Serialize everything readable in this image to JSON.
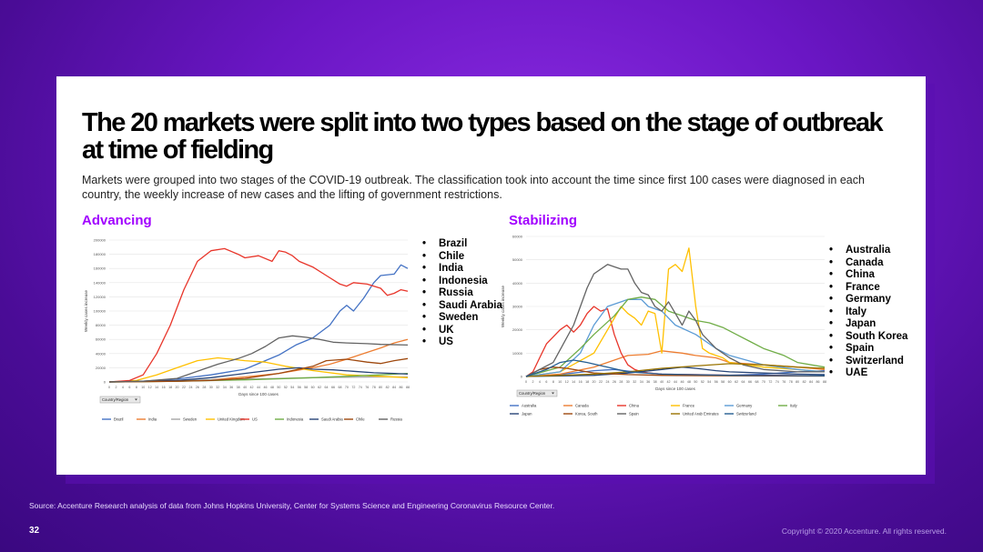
{
  "title": "The 20 markets were split into two types based on the stage of outbreak at time of fielding",
  "subtitle": "Markets were grouped into two stages of the COVID-19 outbreak. The classification took into account the time since first 100 cases were diagnosed in each country, the weekly increase of new cases and the lifting of government restrictions.",
  "advancing": {
    "label": "Advancing",
    "countries": [
      "Brazil",
      "Chile",
      "India",
      "Indonesia",
      "Russia",
      "Saudi Arabia",
      "Sweden",
      "UK",
      "US"
    ]
  },
  "stabilizing": {
    "label": "Stabilizing",
    "countries": [
      "Australia",
      "Canada",
      "China",
      "France",
      "Germany",
      "Italy",
      "Japan",
      "South Korea",
      "Spain",
      "Switzerland",
      "UAE"
    ]
  },
  "chart_data": [
    {
      "type": "line",
      "xlabel": "Days since 100 cases",
      "ylabel": "Weekly cases increase",
      "dropdown": "Country/Region",
      "ylim": [
        0,
        200000
      ],
      "yticks": [
        "0",
        "20000",
        "40000",
        "60000",
        "80000",
        "100000",
        "120000",
        "140000",
        "160000",
        "180000",
        "200000"
      ],
      "xticks": [
        "0",
        "2",
        "4",
        "6",
        "8",
        "10",
        "12",
        "14",
        "16",
        "18",
        "20",
        "22",
        "24",
        "26",
        "28",
        "30",
        "32",
        "34",
        "36",
        "38",
        "40",
        "42",
        "44",
        "46",
        "48",
        "50",
        "52",
        "54",
        "56",
        "58",
        "60",
        "62",
        "64",
        "66",
        "68",
        "70",
        "72",
        "74",
        "76",
        "78",
        "80",
        "82",
        "84",
        "86",
        "88"
      ],
      "xlim": [
        0,
        88
      ],
      "series": [
        {
          "name": "Brazil",
          "color": "#4472c4",
          "x": [
            0,
            10,
            20,
            30,
            40,
            50,
            55,
            60,
            65,
            68,
            70,
            72,
            75,
            78,
            80,
            84,
            86,
            88
          ],
          "y": [
            0,
            1000,
            4000,
            10000,
            18000,
            38000,
            52000,
            62000,
            80000,
            100000,
            108000,
            100000,
            118000,
            140000,
            150000,
            152000,
            165000,
            160000
          ]
        },
        {
          "name": "India",
          "color": "#ed7d31",
          "x": [
            0,
            20,
            30,
            40,
            50,
            60,
            65,
            70,
            75,
            80,
            84,
            88
          ],
          "y": [
            0,
            1000,
            3000,
            7000,
            12000,
            20000,
            25000,
            32000,
            40000,
            48000,
            55000,
            60000
          ]
        },
        {
          "name": "Sweden",
          "color": "#a5a5a5",
          "x": [
            0,
            10,
            20,
            30,
            40,
            50,
            60,
            70,
            80,
            88
          ],
          "y": [
            0,
            1000,
            2000,
            3000,
            4000,
            5000,
            6000,
            6500,
            7000,
            7000
          ]
        },
        {
          "name": "United Kingdom",
          "color": "#ffc000",
          "x": [
            0,
            8,
            14,
            20,
            26,
            32,
            36,
            40,
            46,
            52,
            60,
            70,
            80,
            88
          ],
          "y": [
            0,
            2000,
            10000,
            20000,
            30000,
            34000,
            32000,
            30000,
            28000,
            22000,
            16000,
            10000,
            8000,
            6000
          ]
        },
        {
          "name": "US",
          "color": "#e8352a",
          "x": [
            0,
            6,
            10,
            14,
            18,
            22,
            26,
            30,
            34,
            38,
            40,
            44,
            48,
            50,
            52,
            54,
            56,
            60,
            64,
            68,
            70,
            72,
            76,
            80,
            82,
            84,
            86,
            88
          ],
          "y": [
            0,
            2000,
            10000,
            40000,
            80000,
            130000,
            170000,
            185000,
            188000,
            180000,
            175000,
            178000,
            170000,
            185000,
            183000,
            178000,
            170000,
            162000,
            150000,
            138000,
            135000,
            140000,
            138000,
            132000,
            122000,
            125000,
            130000,
            128000
          ]
        },
        {
          "name": "Indonesia",
          "color": "#70ad47",
          "x": [
            0,
            20,
            40,
            60,
            70,
            80,
            88
          ],
          "y": [
            0,
            1000,
            3000,
            6000,
            8000,
            10000,
            12000
          ]
        },
        {
          "name": "Saudi Arabia",
          "color": "#264478",
          "x": [
            0,
            20,
            30,
            40,
            50,
            56,
            60,
            66,
            72,
            78,
            84,
            88
          ],
          "y": [
            0,
            2000,
            6000,
            12000,
            18000,
            20000,
            18000,
            17000,
            15000,
            13000,
            12000,
            11000
          ]
        },
        {
          "name": "Chile",
          "color": "#9e480e",
          "x": [
            0,
            20,
            30,
            40,
            50,
            60,
            64,
            70,
            76,
            80,
            84,
            88
          ],
          "y": [
            0,
            1000,
            2000,
            5000,
            12000,
            22000,
            30000,
            32000,
            28000,
            26000,
            30000,
            33000
          ]
        },
        {
          "name": "Russia",
          "color": "#636363",
          "x": [
            0,
            10,
            20,
            26,
            32,
            38,
            42,
            46,
            50,
            54,
            58,
            62,
            66,
            70,
            76,
            80,
            88
          ],
          "y": [
            0,
            1000,
            5000,
            15000,
            25000,
            33000,
            40000,
            50000,
            62000,
            65000,
            63000,
            60000,
            56000,
            55000,
            54000,
            53000,
            52000
          ]
        }
      ]
    },
    {
      "type": "line",
      "xlabel": "Days since 100 cases",
      "ylabel": "Weekly cases increase",
      "dropdown": "Country/Region",
      "ylim": [
        0,
        60000
      ],
      "yticks": [
        "0",
        "10000",
        "20000",
        "30000",
        "40000",
        "50000",
        "60000"
      ],
      "xticks": [
        "0",
        "2",
        "4",
        "6",
        "8",
        "10",
        "12",
        "14",
        "16",
        "18",
        "20",
        "22",
        "24",
        "26",
        "28",
        "30",
        "32",
        "34",
        "36",
        "38",
        "40",
        "42",
        "44",
        "46",
        "48",
        "50",
        "52",
        "54",
        "56",
        "58",
        "60",
        "62",
        "64",
        "66",
        "68",
        "70",
        "72",
        "74",
        "76",
        "78",
        "80",
        "82",
        "84",
        "86",
        "88"
      ],
      "xlim": [
        0,
        88
      ],
      "series": [
        {
          "name": "Australia",
          "color": "#4472c4",
          "x": [
            0,
            8,
            14,
            20,
            26,
            32,
            40,
            50,
            60,
            70,
            80,
            88
          ],
          "y": [
            0,
            500,
            1500,
            2500,
            3000,
            2000,
            1000,
            500,
            500,
            1000,
            2000,
            2500
          ]
        },
        {
          "name": "Canada",
          "color": "#ed7d31",
          "x": [
            0,
            10,
            20,
            26,
            30,
            36,
            40,
            46,
            50,
            56,
            60,
            70,
            80,
            88
          ],
          "y": [
            0,
            1000,
            4000,
            7000,
            9000,
            9500,
            11000,
            10000,
            9000,
            8000,
            6000,
            5000,
            4000,
            3000
          ]
        },
        {
          "name": "China",
          "color": "#e8352a",
          "x": [
            0,
            2,
            4,
            6,
            8,
            10,
            12,
            14,
            16,
            18,
            20,
            22,
            24,
            26,
            28,
            30,
            32,
            34,
            36,
            40,
            50,
            60,
            70,
            80,
            88
          ],
          "y": [
            0,
            2000,
            8000,
            14000,
            17000,
            20000,
            22000,
            19000,
            22000,
            27000,
            30000,
            28000,
            29000,
            18000,
            10000,
            5000,
            3000,
            2000,
            1500,
            1000,
            800,
            600,
            500,
            400,
            300
          ]
        },
        {
          "name": "France",
          "color": "#ffc000",
          "x": [
            0,
            10,
            20,
            24,
            28,
            30,
            32,
            34,
            36,
            38,
            40,
            42,
            44,
            46,
            48,
            50,
            52,
            54,
            56,
            58,
            60,
            70,
            80,
            88
          ],
          "y": [
            0,
            2000,
            10000,
            20000,
            30000,
            27000,
            25000,
            22000,
            28000,
            27000,
            10000,
            46000,
            48000,
            45000,
            55000,
            30000,
            12000,
            10000,
            9000,
            8000,
            6000,
            4000,
            3000,
            2000
          ]
        },
        {
          "name": "Germany",
          "color": "#5b9bd5",
          "x": [
            0,
            10,
            16,
            20,
            24,
            28,
            30,
            34,
            36,
            40,
            44,
            50,
            56,
            60,
            70,
            80,
            88
          ],
          "y": [
            0,
            2000,
            10000,
            22000,
            30000,
            32000,
            33000,
            33000,
            30000,
            28000,
            22000,
            18000,
            12000,
            9000,
            5000,
            3000,
            2000
          ]
        },
        {
          "name": "Italy",
          "color": "#70ad47",
          "x": [
            0,
            10,
            16,
            20,
            26,
            30,
            34,
            38,
            42,
            46,
            50,
            54,
            58,
            62,
            66,
            70,
            76,
            80,
            88
          ],
          "y": [
            0,
            4000,
            12000,
            18000,
            26000,
            33000,
            34000,
            33000,
            28000,
            26000,
            24000,
            23000,
            21000,
            18000,
            15000,
            12000,
            9000,
            6000,
            4000
          ]
        },
        {
          "name": "Japan",
          "color": "#264478",
          "x": [
            0,
            20,
            30,
            40,
            46,
            50,
            56,
            60,
            70,
            80,
            88
          ],
          "y": [
            0,
            500,
            1500,
            3000,
            4000,
            3500,
            2500,
            2000,
            1500,
            1000,
            800
          ]
        },
        {
          "name": "Korea, South",
          "color": "#9e480e",
          "x": [
            0,
            4,
            8,
            12,
            16,
            20,
            30,
            40,
            60,
            88
          ],
          "y": [
            0,
            3000,
            4000,
            3500,
            2500,
            1500,
            800,
            500,
            300,
            200
          ]
        },
        {
          "name": "Spain",
          "color": "#636363",
          "x": [
            0,
            8,
            14,
            18,
            20,
            24,
            26,
            28,
            30,
            32,
            34,
            36,
            38,
            40,
            42,
            44,
            46,
            48,
            50,
            52,
            56,
            60,
            64,
            70,
            80,
            88
          ],
          "y": [
            0,
            6000,
            22000,
            38000,
            44000,
            48000,
            47000,
            46000,
            46000,
            40000,
            36000,
            35000,
            30000,
            28000,
            32000,
            27000,
            22000,
            28000,
            24000,
            18000,
            12000,
            8000,
            5000,
            3000,
            2000,
            2000
          ]
        },
        {
          "name": "United Arab Emirates",
          "color": "#997300",
          "x": [
            0,
            20,
            30,
            40,
            50,
            60,
            70,
            80,
            88
          ],
          "y": [
            0,
            1000,
            2000,
            3500,
            4500,
            5500,
            5000,
            4000,
            3500
          ]
        },
        {
          "name": "Switzerland",
          "color": "#255e91",
          "x": [
            0,
            6,
            10,
            14,
            18,
            24,
            30,
            40,
            60,
            88
          ],
          "y": [
            0,
            3000,
            6000,
            7000,
            6000,
            4000,
            2000,
            1000,
            500,
            300
          ]
        }
      ]
    }
  ],
  "footer": {
    "source": "Source: Accenture Research analysis of data from Johns Hopkins University, Center for Systems Science and Engineering Coronavirus Resource Center.",
    "page": "32",
    "copyright": "Copyright © 2020 Accenture. All rights reserved."
  }
}
